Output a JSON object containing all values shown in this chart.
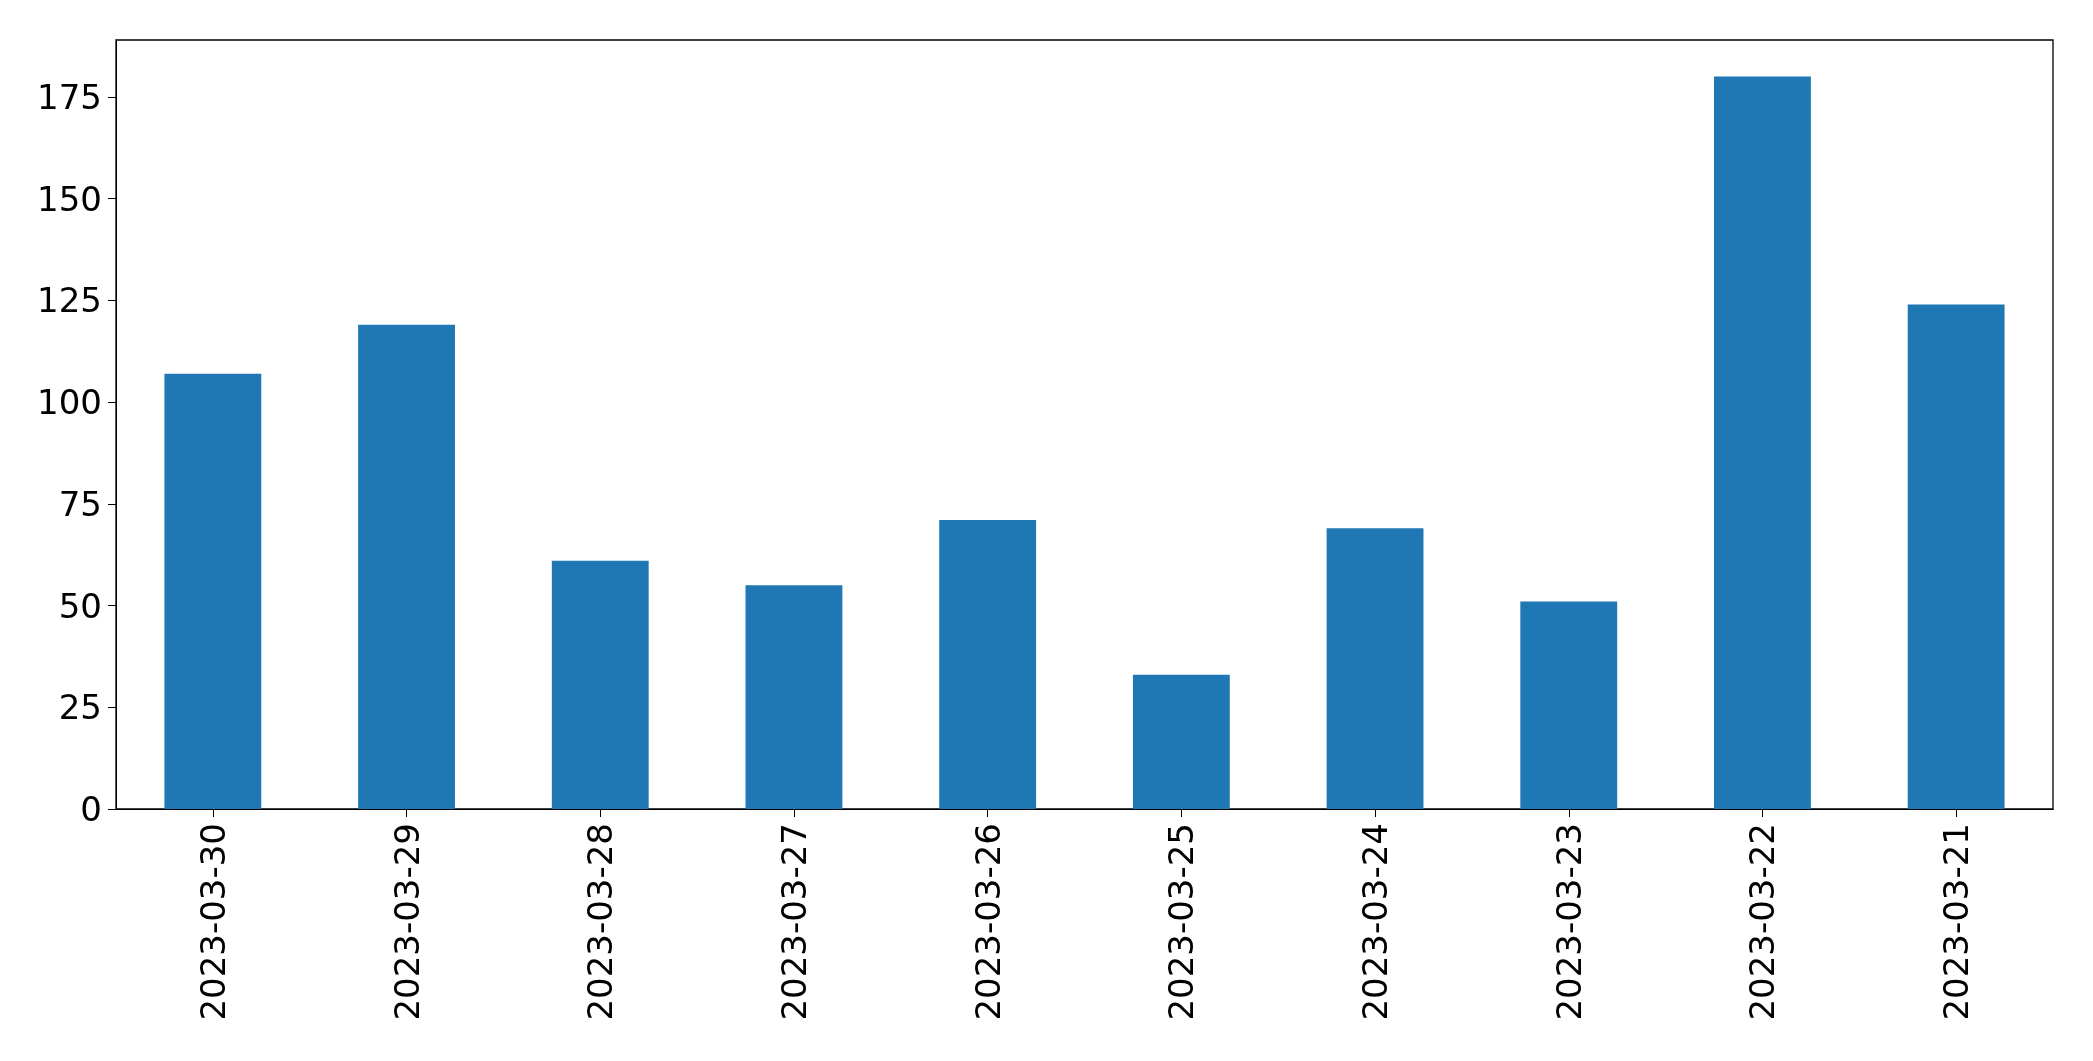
{
  "chart_data": {
    "type": "bar",
    "categories": [
      "2023-03-30",
      "2023-03-29",
      "2023-03-28",
      "2023-03-27",
      "2023-03-26",
      "2023-03-25",
      "2023-03-24",
      "2023-03-23",
      "2023-03-22",
      "2023-03-21"
    ],
    "values": [
      107,
      119,
      61,
      55,
      71,
      33,
      69,
      51,
      180,
      124
    ],
    "color": "#1f77b4",
    "ylim": [
      0,
      189
    ],
    "yticks": [
      0,
      25,
      50,
      75,
      100,
      125,
      150,
      175
    ],
    "grid": false
  }
}
